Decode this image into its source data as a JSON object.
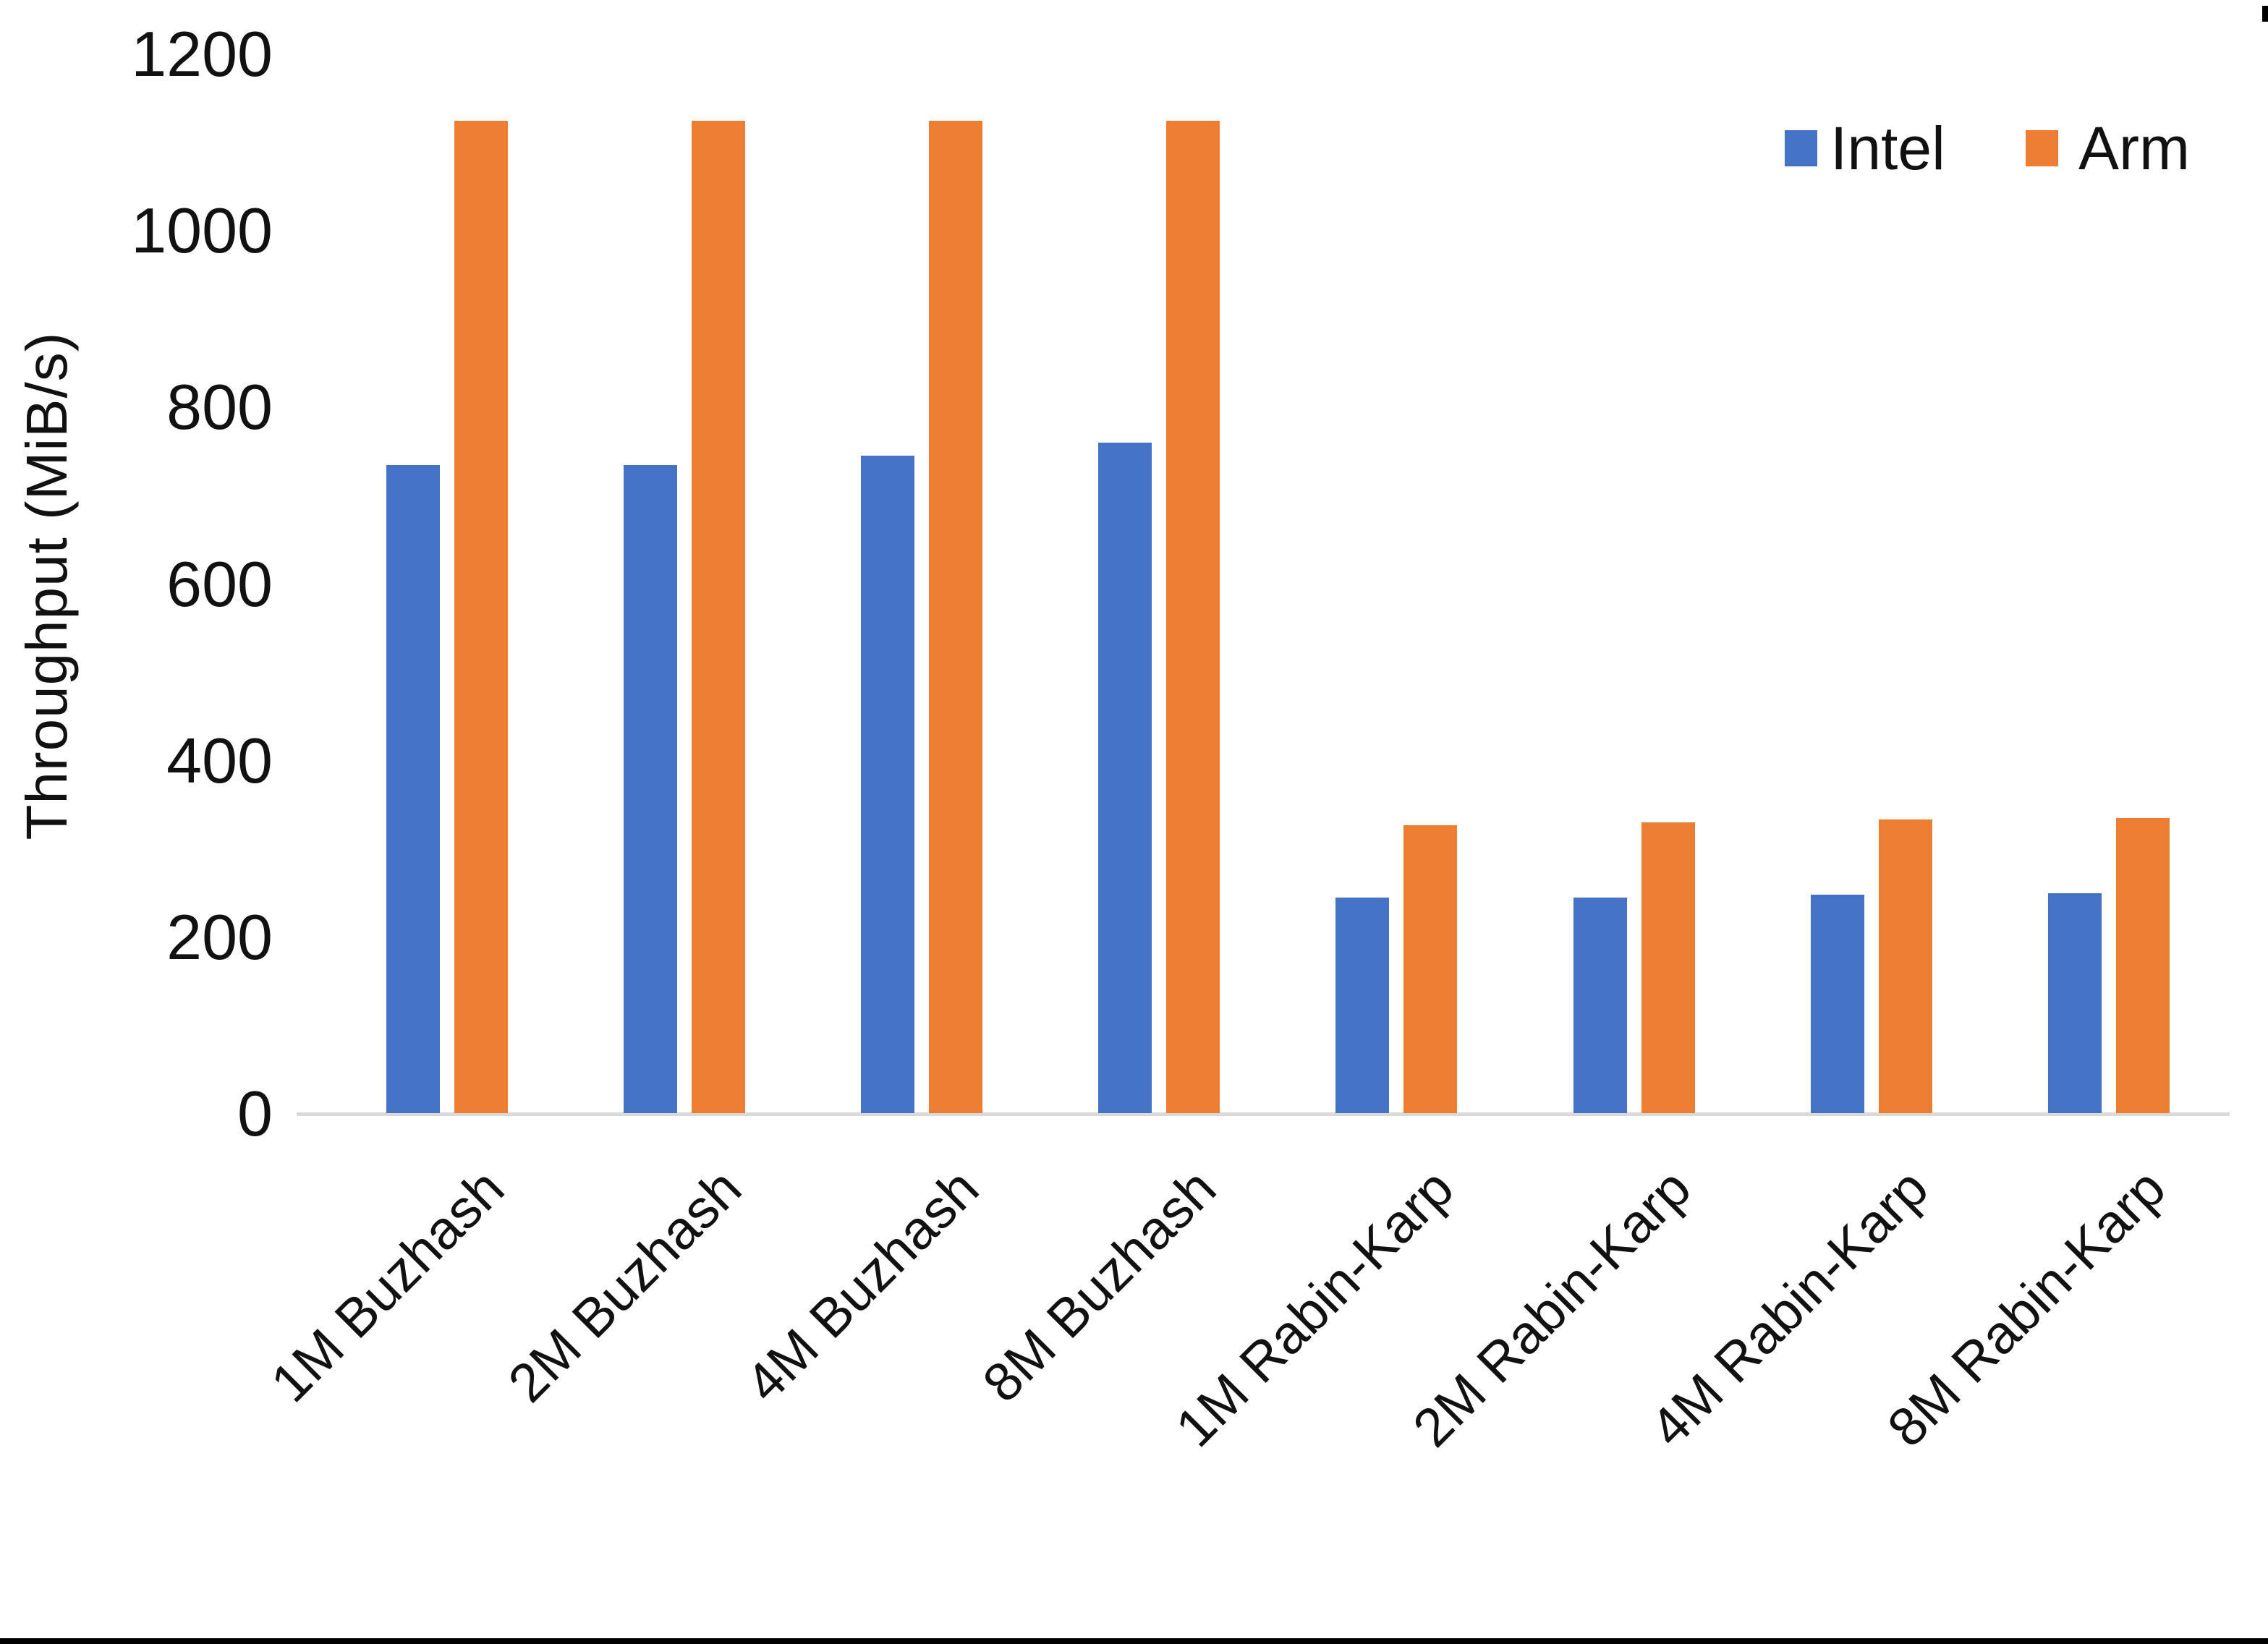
{
  "chart_data": {
    "type": "bar",
    "title": "",
    "ylabel": "Throughput (MiB/s)",
    "xlabel": "",
    "ylim": [
      0,
      1200
    ],
    "y_ticks": [
      0,
      200,
      400,
      600,
      800,
      1000,
      1200
    ],
    "grid": false,
    "legend_position": "top-right",
    "categories": [
      "1M Buzhash",
      "2M Buzhash",
      "4M Buzhash",
      "8M Buzhash",
      "1M Rabin-Karp",
      "2M Rabin-Karp",
      "4M Rabin-Karp",
      "8M Rabin-Karp"
    ],
    "series": [
      {
        "name": "Intel",
        "color": "#4472C4",
        "values": [
          735,
          735,
          745,
          760,
          245,
          245,
          248,
          250
        ]
      },
      {
        "name": "Arm",
        "color": "#ED7D31",
        "values": [
          1125,
          1125,
          1125,
          1125,
          327,
          330,
          333,
          335
        ]
      }
    ],
    "axis_line_color": "#d9d9d9"
  }
}
